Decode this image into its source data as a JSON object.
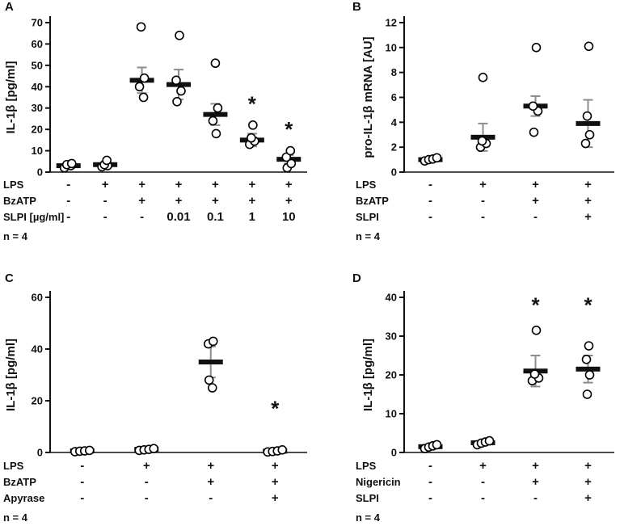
{
  "figure": {
    "background": "#ffffff",
    "colors": {
      "point_stroke": "#000000",
      "point_fill": "#ffffff",
      "mean_bar": "#111111",
      "error_bar": "#8c8c8c",
      "text": "#111111"
    }
  },
  "chart_data": [
    {
      "panel": "A",
      "type": "scatter",
      "ylabel": "IL-1β [pg/ml]",
      "ylim": [
        0,
        70
      ],
      "yticks": [
        0,
        10,
        20,
        30,
        40,
        50,
        60,
        70
      ],
      "groups": [
        {
          "values": [
            2,
            3,
            3.5,
            4
          ],
          "dx": [
            -5,
            3,
            -2,
            4
          ],
          "mean": 3,
          "err": 1,
          "sig": false
        },
        {
          "values": [
            2.5,
            3,
            3.5,
            5.5
          ],
          "dx": [
            -4,
            3,
            -1,
            2
          ],
          "mean": 3.5,
          "err": 1.2,
          "sig": false
        },
        {
          "values": [
            35,
            40,
            44,
            68
          ],
          "dx": [
            2,
            -3,
            3,
            -1
          ],
          "mean": 43,
          "err": 6,
          "sig": false
        },
        {
          "values": [
            33,
            38,
            43,
            64
          ],
          "dx": [
            -2,
            3,
            -3,
            1
          ],
          "mean": 41,
          "err": 7,
          "sig": false
        },
        {
          "values": [
            18,
            24,
            30,
            51
          ],
          "dx": [
            1,
            -3,
            3,
            0
          ],
          "mean": 27,
          "err": 5,
          "sig": false
        },
        {
          "values": [
            13,
            14.5,
            16,
            22
          ],
          "dx": [
            -3,
            3,
            -1,
            1
          ],
          "mean": 15,
          "err": 3,
          "sig": true,
          "sig_y": 32
        },
        {
          "values": [
            2,
            4,
            7,
            10
          ],
          "dx": [
            -2,
            3,
            -3,
            2
          ],
          "mean": 6,
          "err": 2,
          "sig": true,
          "sig_y": 20
        }
      ],
      "treatment_rows": [
        {
          "label": "LPS",
          "values": [
            "-",
            "+",
            "+",
            "+",
            "+",
            "+",
            "+"
          ]
        },
        {
          "label": "BzATP",
          "values": [
            "-",
            "-",
            "+",
            "+",
            "+",
            "+",
            "+"
          ]
        },
        {
          "label": "SLPI [µg/ml]",
          "values": [
            "-",
            "-",
            "-",
            "0.01",
            "0.1",
            "1",
            "10"
          ]
        }
      ],
      "n_label": "n = 4"
    },
    {
      "panel": "B",
      "type": "scatter",
      "ylabel": "pro-IL-1β mRNA [AU]",
      "ylim": [
        0,
        12
      ],
      "yticks": [
        0,
        2,
        4,
        6,
        8,
        10,
        12
      ],
      "groups": [
        {
          "values": [
            0.9,
            1.0,
            1.05,
            1.15
          ],
          "dx": [
            -7,
            -2,
            3,
            8
          ],
          "mean": 1.0,
          "err": 0.15,
          "sig": false
        },
        {
          "values": [
            2.0,
            2.3,
            2.5,
            7.6
          ],
          "dx": [
            -3,
            4,
            -1,
            0
          ],
          "mean": 2.8,
          "err": 1.1,
          "sig": false
        },
        {
          "values": [
            3.2,
            4.9,
            5.3,
            10.0
          ],
          "dx": [
            -2,
            3,
            -3,
            1
          ],
          "mean": 5.3,
          "err": 0.8,
          "sig": false
        },
        {
          "values": [
            2.3,
            3.0,
            4.5,
            10.1
          ],
          "dx": [
            -3,
            2,
            -1,
            1
          ],
          "mean": 3.9,
          "err": 1.9,
          "sig": false
        }
      ],
      "treatment_rows": [
        {
          "label": "LPS",
          "values": [
            "-",
            "+",
            "+",
            "+"
          ]
        },
        {
          "label": "BzATP",
          "values": [
            "-",
            "-",
            "+",
            "+"
          ]
        },
        {
          "label": "SLPI",
          "values": [
            "-",
            "-",
            "-",
            "+"
          ]
        }
      ],
      "n_label": "n = 4"
    },
    {
      "panel": "C",
      "type": "scatter",
      "ylabel": "IL-1β [pg/ml]",
      "ylim": [
        0,
        60
      ],
      "yticks": [
        0,
        20,
        40,
        60
      ],
      "groups": [
        {
          "values": [
            0.3,
            0.5,
            0.6,
            0.8
          ],
          "dx": [
            -9,
            -3,
            3,
            9
          ],
          "mean": 0.6,
          "err": 0.3,
          "sig": false
        },
        {
          "values": [
            0.8,
            1.0,
            1.2,
            1.5
          ],
          "dx": [
            -9,
            -3,
            3,
            9
          ],
          "mean": 1.2,
          "err": 0.4,
          "sig": false
        },
        {
          "values": [
            25,
            28,
            42,
            43
          ],
          "dx": [
            2,
            -2,
            -3,
            3
          ],
          "mean": 35,
          "err": 6,
          "sig": false
        },
        {
          "values": [
            0.2,
            0.4,
            0.6,
            1.0
          ],
          "dx": [
            -9,
            -3,
            3,
            9
          ],
          "mean": 0.5,
          "err": 0.3,
          "sig": true,
          "sig_y": 17
        }
      ],
      "treatment_rows": [
        {
          "label": "LPS",
          "values": [
            "-",
            "+",
            "+",
            "+"
          ]
        },
        {
          "label": "BzATP",
          "values": [
            "-",
            "-",
            "+",
            "+"
          ]
        },
        {
          "label": "Apyrase",
          "values": [
            "-",
            "-",
            "-",
            "+"
          ]
        }
      ],
      "n_label": "n = 4"
    },
    {
      "panel": "D",
      "type": "scatter",
      "ylabel": "IL-1β [pg/ml]",
      "ylim": [
        0,
        40
      ],
      "yticks": [
        0,
        10,
        20,
        30,
        40
      ],
      "groups": [
        {
          "values": [
            1.0,
            1.4,
            1.7,
            2.0
          ],
          "dx": [
            -7,
            -2,
            3,
            8
          ],
          "mean": 1.5,
          "err": 0.5,
          "sig": false
        },
        {
          "values": [
            2.0,
            2.4,
            2.7,
            3.0
          ],
          "dx": [
            -7,
            -2,
            3,
            8
          ],
          "mean": 2.5,
          "err": 0.5,
          "sig": false
        },
        {
          "values": [
            18.5,
            19.2,
            20.2,
            31.5
          ],
          "dx": [
            -4,
            4,
            -1,
            1
          ],
          "mean": 21,
          "err": 4,
          "sig": true,
          "sig_y": 38
        },
        {
          "values": [
            15,
            20,
            24,
            27.5
          ],
          "dx": [
            -1,
            2,
            -2,
            1
          ],
          "mean": 21.5,
          "err": 3.5,
          "sig": true,
          "sig_y": 38
        }
      ],
      "treatment_rows": [
        {
          "label": "LPS",
          "values": [
            "-",
            "+",
            "+",
            "+"
          ]
        },
        {
          "label": "Nigericin",
          "values": [
            "-",
            "-",
            "+",
            "+"
          ]
        },
        {
          "label": "SLPI",
          "values": [
            "-",
            "-",
            "-",
            "+"
          ]
        }
      ],
      "n_label": "n = 4"
    }
  ]
}
